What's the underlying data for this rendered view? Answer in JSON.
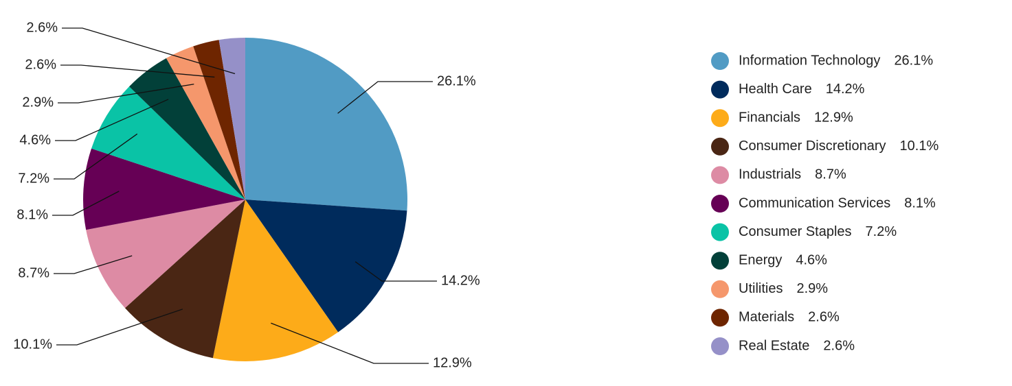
{
  "chart_data": {
    "type": "pie",
    "categories": [
      "Information Technology",
      "Health Care",
      "Financials",
      "Consumer Discretionary",
      "Industrials",
      "Communication Services",
      "Consumer Staples",
      "Energy",
      "Utilities",
      "Materials",
      "Real Estate"
    ],
    "values": [
      26.1,
      14.2,
      12.9,
      10.1,
      8.7,
      8.1,
      7.2,
      4.6,
      2.9,
      2.6,
      2.6
    ],
    "value_labels": [
      "26.1%",
      "14.2%",
      "12.9%",
      "10.1%",
      "8.7%",
      "8.1%",
      "7.2%",
      "4.6%",
      "2.9%",
      "2.6%",
      "2.6%"
    ],
    "colors": [
      "#519bc4",
      "#002b5c",
      "#fdab19",
      "#4a2614",
      "#dd8ba4",
      "#660055",
      "#0ac3a6",
      "#024039",
      "#f5976c",
      "#6e2500",
      "#9590c8"
    ],
    "legend": "right"
  }
}
